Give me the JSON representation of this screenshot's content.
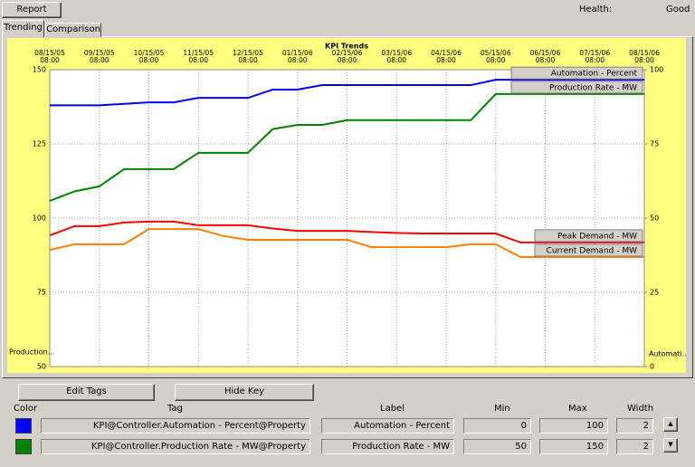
{
  "toolbar": {
    "report_button": "Report",
    "health_label": "Health:",
    "health_value": "Good"
  },
  "tabs": [
    "Trending",
    "Comparison"
  ],
  "chart_data": {
    "type": "line",
    "title": "KPI Trends",
    "x": [
      "08/15/05 08:00",
      null,
      "09/15/05 08:00",
      null,
      "10/15/05 08:00",
      null,
      "11/15/05 08:00",
      null,
      "12/15/05 08:00",
      null,
      "01/15/06 08:00",
      null,
      "02/15/06 08:00",
      null,
      "03/15/06 08:00",
      null,
      "04/15/06 08:00",
      null,
      "05/15/06 08:00",
      null,
      "06/15/06 08:00",
      null,
      "07/15/06 08:00",
      null,
      "08/15/06 08:00"
    ],
    "ylabel": "Production...",
    "y2label": "Automati...",
    "ylim": [
      50,
      150
    ],
    "yticks": [
      50,
      75,
      100,
      125,
      150
    ],
    "y2lim": [
      0,
      100
    ],
    "y2ticks": [
      0,
      25,
      50,
      75,
      100
    ],
    "grid": true,
    "series": [
      {
        "name": "Automation - Percent",
        "color": "#0000ff",
        "axis": "y2",
        "values": [
          88,
          88,
          88,
          88.5,
          89,
          89,
          90.5,
          90.5,
          90.5,
          93.3,
          93.3,
          94.8,
          94.8,
          94.8,
          94.8,
          94.8,
          94.8,
          94.8,
          96.6,
          96.6,
          96.6,
          96.6,
          96.6,
          96.6,
          96.6
        ]
      },
      {
        "name": "Production Rate - MW",
        "color": "#008000",
        "values": [
          105.8,
          109,
          110.7,
          116.5,
          116.5,
          116.5,
          122,
          122,
          122,
          130,
          131.4,
          131.4,
          133,
          133,
          133,
          133,
          133,
          133,
          141.8,
          141.8,
          141.8,
          141.8,
          141.8,
          141.8,
          141.8
        ]
      },
      {
        "name": "Peak Demand - MW",
        "color": "#ff0000",
        "values": [
          94.2,
          97.3,
          97.3,
          98.5,
          98.8,
          98.8,
          97.6,
          97.6,
          97.6,
          96.5,
          95.7,
          95.7,
          95.7,
          95.3,
          95,
          94.8,
          94.8,
          94.8,
          94.8,
          91.8,
          91.8,
          91.8,
          91.8,
          91.8,
          91.8
        ]
      },
      {
        "name": "Current Demand - MW",
        "color": "#ff8000",
        "values": [
          89.3,
          91.2,
          91.2,
          91.2,
          96.3,
          96.3,
          96.3,
          94,
          92.7,
          92.7,
          92.7,
          92.7,
          92.7,
          90.2,
          90.2,
          90.2,
          90.2,
          91.2,
          91.2,
          86.9,
          86.9,
          86.9,
          86.9,
          86.9,
          86.9
        ]
      }
    ]
  },
  "buttons": [
    "Edit Tags",
    "Hide Key"
  ],
  "tag_table": {
    "headers": [
      "Color",
      "Tag",
      "Label",
      "Min",
      "Max",
      "Width"
    ],
    "rows": [
      {
        "color": "#0000ff",
        "tag": "KPI@Controller.Automation - Percent@Property",
        "label": "Automation - Percent",
        "min": "0",
        "max": "100",
        "width": "2"
      },
      {
        "color": "#008000",
        "tag": "KPI@Controller.Production Rate - MW@Property",
        "label": "Production Rate - MW",
        "min": "50",
        "max": "150",
        "width": "2"
      }
    ]
  }
}
